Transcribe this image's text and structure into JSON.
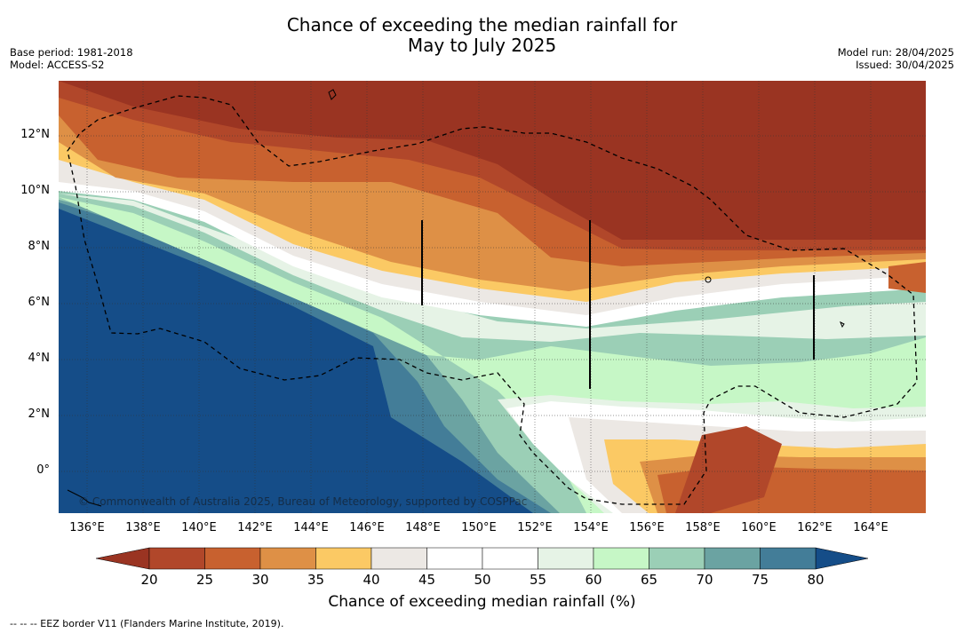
{
  "header": {
    "title_line1": "Chance of exceeding the median rainfall for",
    "title_line2": "May to July 2025",
    "base_period": "Base period: 1981-2018",
    "model": "Model: ACCESS-S2",
    "model_run": "Model run: 28/04/2025",
    "issued": "Issued: 30/04/2025"
  },
  "map": {
    "lon_range": [
      135,
      166
    ],
    "lat_range": [
      -1.5,
      14
    ],
    "x_tick_labels": [
      "136°E",
      "138°E",
      "140°E",
      "142°E",
      "144°E",
      "146°E",
      "148°E",
      "150°E",
      "152°E",
      "154°E",
      "156°E",
      "158°E",
      "160°E",
      "162°E",
      "164°E"
    ],
    "y_tick_labels": [
      "0°",
      "2°N",
      "4°N",
      "6°N",
      "8°N",
      "10°N",
      "12°N"
    ],
    "copyright": "© Commonwealth of Australia 2025, Bureau of Meteorology, supported by COSPPac"
  },
  "colorbar": {
    "tick_labels": [
      "20",
      "25",
      "30",
      "35",
      "40",
      "45",
      "50",
      "55",
      "60",
      "65",
      "70",
      "75",
      "80"
    ],
    "colors": [
      "#9a3422",
      "#b1472a",
      "#c8612f",
      "#de9046",
      "#fbc964",
      "#ece8e4",
      "#ffffff",
      "#ffffff",
      "#e6f3e6",
      "#c6f7c6",
      "#9bcfb6",
      "#6ba3a2",
      "#437d98",
      "#154d88"
    ],
    "title": "Chance of exceeding median rainfall (%)"
  },
  "footnote": "--  --  -- EEZ border V11 (Flanders Marine Institute, 2019)."
}
